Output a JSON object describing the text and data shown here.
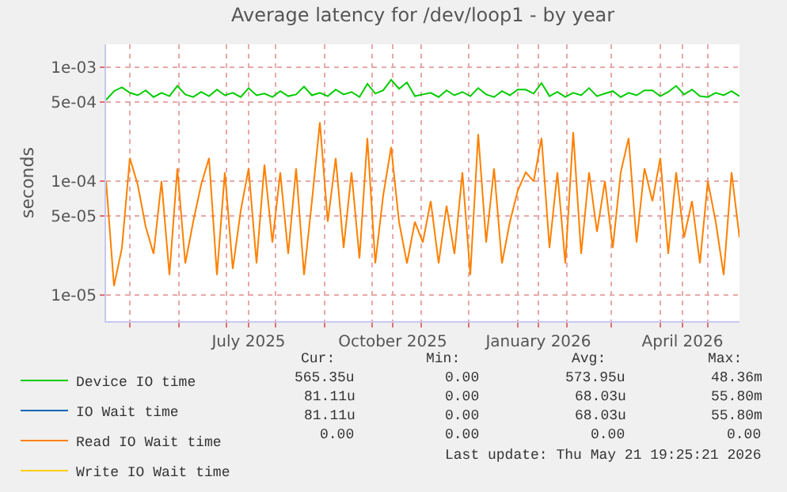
{
  "chart_data": {
    "type": "line",
    "title": "Average latency for /dev/loop1 - by year",
    "ylabel": "seconds",
    "log": "y",
    "grid": true,
    "legend": "bottom",
    "marker": "none",
    "line_style": "solid",
    "ylim": [
      5.9e-06,
      0.0016
    ],
    "yticks": [
      {
        "value": 0.001,
        "label": "1e-03"
      },
      {
        "value": 0.0005,
        "label": "5e-04"
      },
      {
        "value": 0.0001,
        "label": "1e-04"
      },
      {
        "value": 5e-05,
        "label": "5e-05"
      },
      {
        "value": 1e-05,
        "label": "1e-05"
      }
    ],
    "xlim": [
      "2025-04-16",
      "2026-05-21"
    ],
    "xticks": [
      {
        "value": "2025-05-01",
        "label": null
      },
      {
        "value": "2025-06-01",
        "label": null
      },
      {
        "value": "2025-07-01",
        "label": null
      },
      {
        "value": "2025-07-15",
        "label": "July 2025"
      },
      {
        "value": "2025-08-01",
        "label": null
      },
      {
        "value": "2025-09-01",
        "label": null
      },
      {
        "value": "2025-10-01",
        "label": null
      },
      {
        "value": "2025-10-14",
        "label": "October 2025"
      },
      {
        "value": "2025-11-01",
        "label": null
      },
      {
        "value": "2025-12-01",
        "label": null
      },
      {
        "value": "2026-01-01",
        "label": null
      },
      {
        "value": "2026-01-14",
        "label": "January 2026"
      },
      {
        "value": "2026-02-01",
        "label": null
      },
      {
        "value": "2026-03-01",
        "label": null
      },
      {
        "value": "2026-04-01",
        "label": null
      },
      {
        "value": "2026-04-15",
        "label": "April 2026"
      },
      {
        "value": "2026-05-01",
        "label": null
      }
    ],
    "x": [
      "2025-04-16",
      "2025-04-21",
      "2025-04-26",
      "2025-05-01",
      "2025-05-06",
      "2025-05-11",
      "2025-05-16",
      "2025-05-21",
      "2025-05-26",
      "2025-05-31",
      "2025-06-05",
      "2025-06-10",
      "2025-06-15",
      "2025-06-20",
      "2025-06-25",
      "2025-06-30",
      "2025-07-05",
      "2025-07-10",
      "2025-07-15",
      "2025-07-20",
      "2025-07-25",
      "2025-07-30",
      "2025-08-04",
      "2025-08-09",
      "2025-08-14",
      "2025-08-19",
      "2025-08-24",
      "2025-08-29",
      "2025-09-03",
      "2025-09-08",
      "2025-09-13",
      "2025-09-18",
      "2025-09-23",
      "2025-09-28",
      "2025-10-03",
      "2025-10-08",
      "2025-10-13",
      "2025-10-18",
      "2025-10-23",
      "2025-10-28",
      "2025-11-02",
      "2025-11-07",
      "2025-11-12",
      "2025-11-17",
      "2025-11-22",
      "2025-11-27",
      "2025-12-02",
      "2025-12-07",
      "2025-12-12",
      "2025-12-17",
      "2025-12-22",
      "2025-12-27",
      "2026-01-01",
      "2026-01-06",
      "2026-01-11",
      "2026-01-16",
      "2026-01-21",
      "2026-01-26",
      "2026-01-31",
      "2026-02-05",
      "2026-02-10",
      "2026-02-15",
      "2026-02-20",
      "2026-02-25",
      "2026-03-02",
      "2026-03-07",
      "2026-03-12",
      "2026-03-17",
      "2026-03-22",
      "2026-03-27",
      "2026-04-01",
      "2026-04-06",
      "2026-04-11",
      "2026-04-16",
      "2026-04-21",
      "2026-04-26",
      "2026-05-01",
      "2026-05-06",
      "2026-05-11",
      "2026-05-16",
      "2026-05-21"
    ],
    "series": [
      {
        "name": "Device IO time",
        "color": "#00cc00",
        "values": [
          0.00052,
          0.00062,
          0.00067,
          0.0006,
          0.00057,
          0.00063,
          0.00055,
          0.0006,
          0.00056,
          0.00069,
          0.00058,
          0.00055,
          0.00061,
          0.00056,
          0.00064,
          0.00057,
          0.0006,
          0.00055,
          0.00066,
          0.00057,
          0.00059,
          0.00055,
          0.00062,
          0.00056,
          0.00058,
          0.00068,
          0.00057,
          0.0006,
          0.00056,
          0.00064,
          0.00058,
          0.00061,
          0.00055,
          0.00072,
          0.00059,
          0.00063,
          0.00078,
          0.00065,
          0.00074,
          0.00056,
          0.00058,
          0.0006,
          0.00055,
          0.00063,
          0.00057,
          0.00061,
          0.00056,
          0.00066,
          0.00058,
          0.00055,
          0.00062,
          0.00057,
          0.00064,
          0.00064,
          0.00059,
          0.00073,
          0.00056,
          0.00061,
          0.00055,
          0.0006,
          0.00057,
          0.00066,
          0.00056,
          0.00059,
          0.00062,
          0.00055,
          0.0006,
          0.00057,
          0.00063,
          0.00063,
          0.00056,
          0.00061,
          0.00069,
          0.00058,
          0.00064,
          0.00056,
          0.00055,
          0.0006,
          0.00057,
          0.00062,
          0.00056
        ]
      },
      {
        "name": "IO Wait time",
        "color": "#0066b3",
        "values": [
          null,
          null,
          null,
          null,
          null,
          null,
          null,
          null,
          null,
          null,
          null,
          null,
          null,
          null,
          null,
          null,
          null,
          null,
          null,
          null,
          null,
          null,
          null,
          null,
          null,
          null,
          null,
          null,
          null,
          null,
          null,
          null,
          null,
          null,
          null,
          null,
          null,
          null,
          null,
          null,
          null,
          null,
          null,
          null,
          null,
          null,
          null,
          null,
          null,
          null,
          null,
          null,
          null,
          null,
          null,
          null,
          null,
          null,
          null,
          null,
          null,
          null,
          null,
          null,
          null,
          null,
          null,
          null,
          null,
          null,
          null,
          null,
          null,
          null,
          null,
          null,
          null,
          null,
          null,
          null,
          null
        ]
      },
      {
        "name": "Read IO Wait time",
        "color": "#ff8000",
        "values": [
          0.0001,
          1.2e-05,
          2.6e-05,
          0.00016,
          9.3e-05,
          4e-05,
          2.3e-05,
          0.0001,
          1.5e-05,
          0.00013,
          1.9e-05,
          4.4e-05,
          9.3e-05,
          0.00016,
          1.5e-05,
          0.00012,
          1.7e-05,
          5.5e-05,
          0.00013,
          1.9e-05,
          0.00014,
          2.9e-05,
          0.00012,
          2.3e-05,
          0.00013,
          1.5e-05,
          6.7e-05,
          0.00033,
          4.4e-05,
          0.00016,
          2.6e-05,
          0.00012,
          2.1e-05,
          0.00024,
          1.9e-05,
          7.5e-05,
          0.0002,
          4.4e-05,
          1.9e-05,
          4.4e-05,
          2.9e-05,
          6.7e-05,
          1.9e-05,
          6.1e-05,
          2.3e-05,
          0.00012,
          1.5e-05,
          0.00026,
          2.9e-05,
          0.00013,
          1.9e-05,
          4.4e-05,
          8.3e-05,
          0.00012,
          0.0001,
          0.00024,
          2.6e-05,
          0.00012,
          1.9e-05,
          0.00027,
          2.3e-05,
          0.00012,
          3.6e-05,
          0.0001,
          2.6e-05,
          0.00012,
          0.00024,
          2.9e-05,
          0.00013,
          6.7e-05,
          0.00016,
          2.3e-05,
          0.00012,
          3.2e-05,
          6.7e-05,
          1.9e-05,
          0.0001,
          4.4e-05,
          1.5e-05,
          0.00012,
          3.2e-05
        ]
      },
      {
        "name": "Write IO Wait time",
        "color": "#ffcc00",
        "values": [
          null,
          null,
          null,
          null,
          null,
          null,
          null,
          null,
          null,
          null,
          null,
          null,
          null,
          null,
          null,
          null,
          null,
          null,
          null,
          null,
          null,
          null,
          null,
          null,
          null,
          null,
          null,
          null,
          null,
          null,
          null,
          null,
          null,
          null,
          null,
          null,
          null,
          null,
          null,
          null,
          null,
          null,
          null,
          null,
          null,
          null,
          null,
          null,
          null,
          null,
          null,
          null,
          null,
          null,
          null,
          null,
          null,
          null,
          null,
          null,
          null,
          null,
          null,
          null,
          null,
          null,
          null,
          null,
          null,
          null,
          null,
          null,
          null,
          null,
          null,
          null,
          null,
          null,
          null,
          null,
          null
        ]
      }
    ],
    "annotations": [
      "Cur:",
      "Min:",
      "Avg:",
      "Max:",
      "565.35u",
      "0.00",
      "573.95u",
      "48.36m",
      "81.11u",
      "0.00",
      "68.03u",
      "55.80m",
      "81.11u",
      "0.00",
      "68.03u",
      "55.80m",
      "0.00",
      "0.00",
      "0.00",
      "0.00",
      "Last update: Thu May 21 19:25:21 2026"
    ]
  }
}
